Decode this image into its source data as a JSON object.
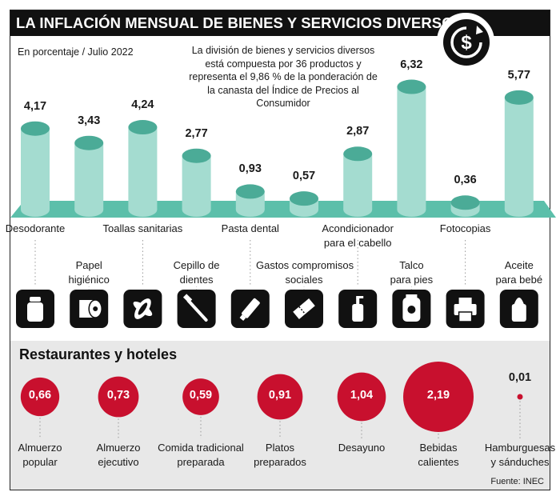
{
  "title": "LA INFLACIÓN MENSUAL DE BIENES Y SERVICIOS DIVERSOS",
  "subtitle": "En porcentaje / Julio 2022",
  "description": "La división de bienes y servicios diversos está compuesta por 36 productos y representa el 9,86 % de la ponderación de la canasta del Índice de Precios al Consumidor",
  "restaurants_title": "Restaurantes y hoteles",
  "source": "Fuente: INEC",
  "icon_logo": "dollar-cycle-icon",
  "colors": {
    "bar_fill": "#a4dcd0",
    "bar_top": "#4bab97",
    "platform": "#5cbfaa",
    "bubble": "#c8102e",
    "band": "#e8e8e8"
  },
  "chart_data": [
    {
      "type": "bar",
      "categories": [
        "Desodorante",
        "Papel higiénico",
        "Toallas sanitarias",
        "Cepillo de dientes",
        "Pasta dental",
        "Gastos compromisos sociales",
        "Acondicionador para el cabello",
        "Talco para pies",
        "Fotocopias",
        "Aceite para bebé"
      ],
      "category_lines": [
        [
          "Desodorante"
        ],
        [
          "Papel",
          "higiénico"
        ],
        [
          "Toallas sanitarias"
        ],
        [
          "Cepillo de",
          "dientes"
        ],
        [
          "Pasta dental"
        ],
        [
          "Gastos compromisos",
          "sociales"
        ],
        [
          "Acondicionador",
          "para el cabello"
        ],
        [
          "Talco",
          "para pies"
        ],
        [
          "Fotocopias"
        ],
        [
          "Aceite",
          "para bebé"
        ]
      ],
      "values": [
        4.17,
        3.43,
        4.24,
        2.77,
        0.93,
        0.57,
        2.87,
        6.32,
        0.36,
        5.77
      ],
      "value_labels": [
        "4,17",
        "3,43",
        "4,24",
        "2,77",
        "0,93",
        "0,57",
        "2,87",
        "6,32",
        "0,36",
        "5,77"
      ],
      "icons": [
        "deodorant-icon",
        "toilet-paper-icon",
        "sanitary-pad-icon",
        "toothbrush-icon",
        "toothpaste-icon",
        "tickets-icon",
        "conditioner-icon",
        "talc-icon",
        "printer-icon",
        "baby-oil-icon"
      ],
      "ylim": [
        0,
        7
      ]
    },
    {
      "type": "bubble",
      "categories": [
        "Almuerzo popular",
        "Almuerzo ejecutivo",
        "Comida tradicional preparada",
        "Platos preparados",
        "Desayuno",
        "Bebidas calientes",
        "Hamburguesas y sánduches"
      ],
      "category_lines": [
        [
          "Almuerzo",
          "popular"
        ],
        [
          "Almuerzo",
          "ejecutivo"
        ],
        [
          "Comida tradicional",
          "preparada"
        ],
        [
          "Platos",
          "preparados"
        ],
        [
          "Desayuno"
        ],
        [
          "Bebidas",
          "calientes"
        ],
        [
          "Hamburguesas",
          "y sánduches"
        ]
      ],
      "values": [
        0.66,
        0.73,
        0.59,
        0.91,
        1.04,
        2.19,
        0.01
      ],
      "value_labels": [
        "0,66",
        "0,73",
        "0,59",
        "0,91",
        "1,04",
        "2,19",
        "0,01"
      ]
    }
  ]
}
